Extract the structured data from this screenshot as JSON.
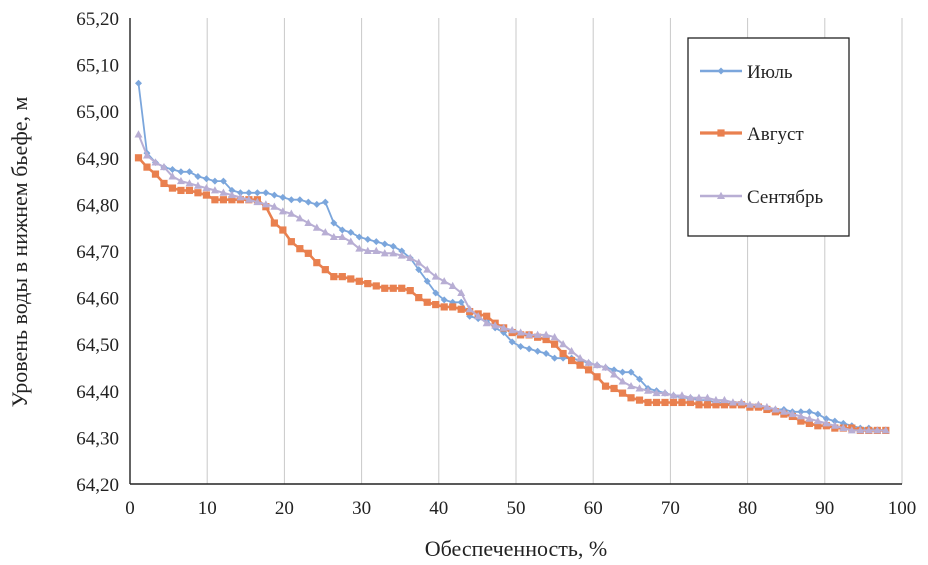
{
  "chart_data": {
    "type": "line",
    "title": "",
    "xlabel": "Обеспеченность, %",
    "ylabel": "Уровень воды в нижнем бьефе, м",
    "xlim": [
      0,
      100
    ],
    "ylim": [
      64.2,
      65.2
    ],
    "x_ticks": [
      0,
      10,
      20,
      30,
      40,
      50,
      60,
      70,
      80,
      90,
      100
    ],
    "x_tick_labels": [
      "0",
      "10",
      "20",
      "30",
      "40",
      "50",
      "60",
      "70",
      "80",
      "90",
      "100"
    ],
    "y_ticks": [
      64.2,
      64.3,
      64.4,
      64.5,
      64.6,
      64.7,
      64.8,
      64.9,
      65.0,
      65.1,
      65.2
    ],
    "y_tick_labels": [
      "64,20",
      "64,30",
      "64,40",
      "64,50",
      "64,60",
      "64,70",
      "64,80",
      "64,90",
      "65,00",
      "65,10",
      "65,20"
    ],
    "grid": "vertical",
    "legend_position": "top-right",
    "series": [
      {
        "name": "Июль",
        "color": "#7ba6dc",
        "marker": "diamond",
        "points": [
          [
            1.1,
            65.06
          ],
          [
            2.2,
            64.91
          ],
          [
            3.3,
            64.89
          ],
          [
            4.4,
            64.88
          ],
          [
            5.5,
            64.875
          ],
          [
            6.6,
            64.87
          ],
          [
            7.7,
            64.87
          ],
          [
            8.8,
            64.86
          ],
          [
            9.9,
            64.855
          ],
          [
            11.0,
            64.85
          ],
          [
            12.1,
            64.85
          ],
          [
            13.2,
            64.83
          ],
          [
            14.3,
            64.825
          ],
          [
            15.4,
            64.825
          ],
          [
            16.5,
            64.825
          ],
          [
            17.6,
            64.825
          ],
          [
            18.7,
            64.82
          ],
          [
            19.8,
            64.815
          ],
          [
            20.9,
            64.81
          ],
          [
            22.0,
            64.81
          ],
          [
            23.1,
            64.805
          ],
          [
            24.2,
            64.8
          ],
          [
            25.3,
            64.805
          ],
          [
            26.4,
            64.76
          ],
          [
            27.5,
            64.745
          ],
          [
            28.6,
            64.74
          ],
          [
            29.7,
            64.73
          ],
          [
            30.8,
            64.725
          ],
          [
            31.9,
            64.72
          ],
          [
            33.0,
            64.715
          ],
          [
            34.1,
            64.71
          ],
          [
            35.2,
            64.7
          ],
          [
            36.3,
            64.685
          ],
          [
            37.4,
            64.66
          ],
          [
            38.5,
            64.635
          ],
          [
            39.6,
            64.61
          ],
          [
            40.7,
            64.595
          ],
          [
            41.8,
            64.59
          ],
          [
            42.9,
            64.59
          ],
          [
            44.0,
            64.56
          ],
          [
            45.1,
            64.555
          ],
          [
            46.2,
            64.55
          ],
          [
            47.3,
            64.535
          ],
          [
            48.4,
            64.525
          ],
          [
            49.5,
            64.505
          ],
          [
            50.6,
            64.495
          ],
          [
            51.7,
            64.49
          ],
          [
            52.8,
            64.485
          ],
          [
            53.9,
            64.48
          ],
          [
            55.0,
            64.47
          ],
          [
            56.1,
            64.47
          ],
          [
            57.2,
            64.47
          ],
          [
            58.3,
            64.465
          ],
          [
            59.4,
            64.46
          ],
          [
            60.5,
            64.455
          ],
          [
            61.6,
            64.45
          ],
          [
            62.7,
            64.445
          ],
          [
            63.8,
            64.44
          ],
          [
            64.9,
            64.44
          ],
          [
            66.0,
            64.425
          ],
          [
            67.1,
            64.405
          ],
          [
            68.2,
            64.4
          ],
          [
            69.3,
            64.395
          ],
          [
            70.4,
            64.39
          ],
          [
            71.5,
            64.385
          ],
          [
            72.6,
            64.385
          ],
          [
            73.7,
            64.38
          ],
          [
            74.8,
            64.38
          ],
          [
            75.9,
            64.375
          ],
          [
            77.0,
            64.375
          ],
          [
            78.1,
            64.37
          ],
          [
            79.2,
            64.37
          ],
          [
            80.3,
            64.365
          ],
          [
            81.4,
            64.365
          ],
          [
            82.5,
            64.36
          ],
          [
            83.6,
            64.36
          ],
          [
            84.7,
            64.36
          ],
          [
            85.8,
            64.355
          ],
          [
            86.9,
            64.355
          ],
          [
            88.0,
            64.355
          ],
          [
            89.1,
            64.35
          ],
          [
            90.2,
            64.34
          ],
          [
            91.3,
            64.335
          ],
          [
            92.4,
            64.33
          ],
          [
            93.5,
            64.325
          ],
          [
            94.6,
            64.32
          ],
          [
            95.7,
            64.32
          ],
          [
            96.8,
            64.315
          ],
          [
            97.9,
            64.315
          ]
        ]
      },
      {
        "name": "Август",
        "color": "#e9804f",
        "marker": "square",
        "points": [
          [
            1.1,
            64.9
          ],
          [
            2.2,
            64.88
          ],
          [
            3.3,
            64.865
          ],
          [
            4.4,
            64.845
          ],
          [
            5.5,
            64.835
          ],
          [
            6.6,
            64.83
          ],
          [
            7.7,
            64.83
          ],
          [
            8.8,
            64.825
          ],
          [
            9.9,
            64.82
          ],
          [
            11.0,
            64.81
          ],
          [
            12.1,
            64.81
          ],
          [
            13.2,
            64.81
          ],
          [
            14.3,
            64.81
          ],
          [
            15.4,
            64.81
          ],
          [
            16.5,
            64.81
          ],
          [
            17.6,
            64.795
          ],
          [
            18.7,
            64.76
          ],
          [
            19.8,
            64.745
          ],
          [
            20.9,
            64.72
          ],
          [
            22.0,
            64.705
          ],
          [
            23.1,
            64.695
          ],
          [
            24.2,
            64.675
          ],
          [
            25.3,
            64.66
          ],
          [
            26.4,
            64.645
          ],
          [
            27.5,
            64.645
          ],
          [
            28.6,
            64.64
          ],
          [
            29.7,
            64.635
          ],
          [
            30.8,
            64.63
          ],
          [
            31.9,
            64.625
          ],
          [
            33.0,
            64.62
          ],
          [
            34.1,
            64.62
          ],
          [
            35.2,
            64.62
          ],
          [
            36.3,
            64.615
          ],
          [
            37.4,
            64.6
          ],
          [
            38.5,
            64.59
          ],
          [
            39.6,
            64.585
          ],
          [
            40.7,
            64.58
          ],
          [
            41.8,
            64.58
          ],
          [
            42.9,
            64.575
          ],
          [
            44.0,
            64.57
          ],
          [
            45.1,
            64.565
          ],
          [
            46.2,
            64.56
          ],
          [
            47.3,
            64.545
          ],
          [
            48.4,
            64.535
          ],
          [
            49.5,
            64.525
          ],
          [
            50.6,
            64.52
          ],
          [
            51.7,
            64.52
          ],
          [
            52.8,
            64.515
          ],
          [
            53.9,
            64.51
          ],
          [
            55.0,
            64.5
          ],
          [
            56.1,
            64.48
          ],
          [
            57.2,
            64.465
          ],
          [
            58.3,
            64.455
          ],
          [
            59.4,
            64.445
          ],
          [
            60.5,
            64.43
          ],
          [
            61.6,
            64.41
          ],
          [
            62.7,
            64.405
          ],
          [
            63.8,
            64.395
          ],
          [
            64.9,
            64.385
          ],
          [
            66.0,
            64.38
          ],
          [
            67.1,
            64.375
          ],
          [
            68.2,
            64.375
          ],
          [
            69.3,
            64.375
          ],
          [
            70.4,
            64.375
          ],
          [
            71.5,
            64.375
          ],
          [
            72.6,
            64.375
          ],
          [
            73.7,
            64.37
          ],
          [
            74.8,
            64.37
          ],
          [
            75.9,
            64.37
          ],
          [
            77.0,
            64.37
          ],
          [
            78.1,
            64.37
          ],
          [
            79.2,
            64.37
          ],
          [
            80.3,
            64.365
          ],
          [
            81.4,
            64.365
          ],
          [
            82.5,
            64.36
          ],
          [
            83.6,
            64.355
          ],
          [
            84.7,
            64.35
          ],
          [
            85.8,
            64.345
          ],
          [
            86.9,
            64.335
          ],
          [
            88.0,
            64.33
          ],
          [
            89.1,
            64.325
          ],
          [
            90.2,
            64.325
          ],
          [
            91.3,
            64.32
          ],
          [
            92.4,
            64.32
          ],
          [
            93.5,
            64.32
          ],
          [
            94.6,
            64.315
          ],
          [
            95.7,
            64.315
          ],
          [
            96.8,
            64.315
          ],
          [
            97.9,
            64.315
          ]
        ]
      },
      {
        "name": "Сентябрь",
        "color": "#b8aed4",
        "marker": "triangle",
        "points": [
          [
            1.1,
            64.95
          ],
          [
            2.2,
            64.905
          ],
          [
            3.3,
            64.89
          ],
          [
            4.4,
            64.88
          ],
          [
            5.5,
            64.86
          ],
          [
            6.6,
            64.85
          ],
          [
            7.7,
            64.845
          ],
          [
            8.8,
            64.84
          ],
          [
            9.9,
            64.835
          ],
          [
            11.0,
            64.83
          ],
          [
            12.1,
            64.825
          ],
          [
            13.2,
            64.82
          ],
          [
            14.3,
            64.815
          ],
          [
            15.4,
            64.81
          ],
          [
            16.5,
            64.805
          ],
          [
            17.6,
            64.8
          ],
          [
            18.7,
            64.795
          ],
          [
            19.8,
            64.785
          ],
          [
            20.9,
            64.78
          ],
          [
            22.0,
            64.77
          ],
          [
            23.1,
            64.76
          ],
          [
            24.2,
            64.75
          ],
          [
            25.3,
            64.74
          ],
          [
            26.4,
            64.73
          ],
          [
            27.5,
            64.73
          ],
          [
            28.6,
            64.72
          ],
          [
            29.7,
            64.705
          ],
          [
            30.8,
            64.7
          ],
          [
            31.9,
            64.7
          ],
          [
            33.0,
            64.695
          ],
          [
            34.1,
            64.695
          ],
          [
            35.2,
            64.69
          ],
          [
            36.3,
            64.685
          ],
          [
            37.4,
            64.675
          ],
          [
            38.5,
            64.66
          ],
          [
            39.6,
            64.645
          ],
          [
            40.7,
            64.635
          ],
          [
            41.8,
            64.625
          ],
          [
            42.9,
            64.61
          ],
          [
            44.0,
            64.575
          ],
          [
            45.1,
            64.56
          ],
          [
            46.2,
            64.545
          ],
          [
            47.3,
            64.54
          ],
          [
            48.4,
            64.535
          ],
          [
            49.5,
            64.53
          ],
          [
            50.6,
            64.525
          ],
          [
            51.7,
            64.52
          ],
          [
            52.8,
            64.52
          ],
          [
            53.9,
            64.52
          ],
          [
            55.0,
            64.515
          ],
          [
            56.1,
            64.5
          ],
          [
            57.2,
            64.485
          ],
          [
            58.3,
            64.47
          ],
          [
            59.4,
            64.46
          ],
          [
            60.5,
            64.455
          ],
          [
            61.6,
            64.45
          ],
          [
            62.7,
            64.435
          ],
          [
            63.8,
            64.42
          ],
          [
            64.9,
            64.41
          ],
          [
            66.0,
            64.405
          ],
          [
            67.1,
            64.4
          ],
          [
            68.2,
            64.395
          ],
          [
            69.3,
            64.395
          ],
          [
            70.4,
            64.39
          ],
          [
            71.5,
            64.39
          ],
          [
            72.6,
            64.385
          ],
          [
            73.7,
            64.385
          ],
          [
            74.8,
            64.385
          ],
          [
            75.9,
            64.38
          ],
          [
            77.0,
            64.38
          ],
          [
            78.1,
            64.375
          ],
          [
            79.2,
            64.375
          ],
          [
            80.3,
            64.37
          ],
          [
            81.4,
            64.37
          ],
          [
            82.5,
            64.365
          ],
          [
            83.6,
            64.36
          ],
          [
            84.7,
            64.355
          ],
          [
            85.8,
            64.35
          ],
          [
            86.9,
            64.345
          ],
          [
            88.0,
            64.34
          ],
          [
            89.1,
            64.335
          ],
          [
            90.2,
            64.33
          ],
          [
            91.3,
            64.325
          ],
          [
            92.4,
            64.32
          ],
          [
            93.5,
            64.315
          ],
          [
            94.6,
            64.315
          ],
          [
            95.7,
            64.315
          ],
          [
            96.8,
            64.315
          ],
          [
            97.9,
            64.315
          ]
        ]
      }
    ]
  }
}
